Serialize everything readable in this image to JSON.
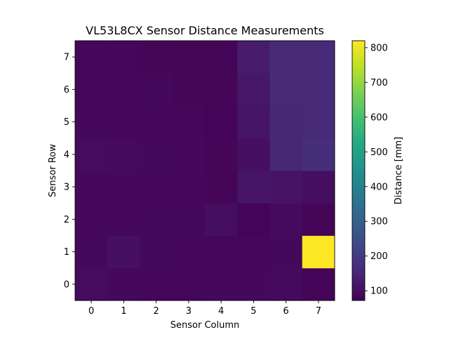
{
  "chart_data": {
    "type": "heatmap",
    "title": "VL53L8CX Sensor Distance Measurements",
    "xlabel": "Sensor Column",
    "ylabel": "Sensor Row",
    "x_ticks": [
      "0",
      "1",
      "2",
      "3",
      "4",
      "5",
      "6",
      "7"
    ],
    "y_ticks": [
      "0",
      "1",
      "2",
      "3",
      "4",
      "5",
      "6",
      "7"
    ],
    "colormap": "viridis",
    "colorbar": {
      "label": "Distance [mm]",
      "range": [
        72,
        820
      ],
      "ticks": [
        100,
        200,
        300,
        400,
        500,
        600,
        700,
        800
      ]
    },
    "row_order": "row 0 at bottom",
    "values": [
      [
        95,
        88,
        85,
        85,
        88,
        88,
        92,
        80
      ],
      [
        90,
        102,
        90,
        88,
        85,
        85,
        90,
        820
      ],
      [
        88,
        88,
        90,
        90,
        100,
        78,
        92,
        82
      ],
      [
        88,
        88,
        85,
        85,
        82,
        115,
        110,
        100
      ],
      [
        95,
        92,
        90,
        88,
        82,
        102,
        155,
        170
      ],
      [
        88,
        85,
        85,
        85,
        80,
        115,
        155,
        160
      ],
      [
        85,
        85,
        90,
        82,
        82,
        120,
        160,
        160
      ],
      [
        85,
        85,
        82,
        82,
        82,
        130,
        160,
        160
      ]
    ]
  }
}
